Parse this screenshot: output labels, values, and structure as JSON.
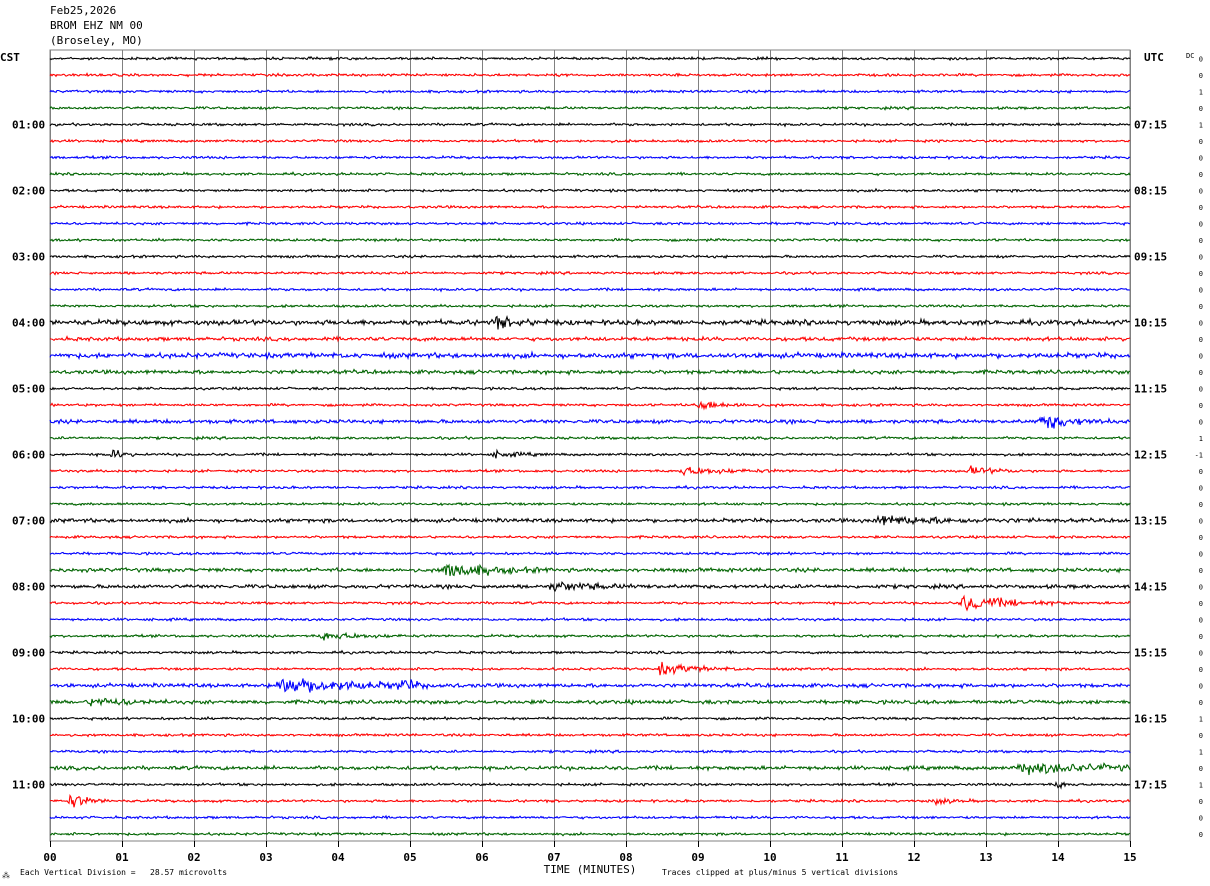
{
  "header": {
    "date": "Feb25,2026",
    "station": "BROM EHZ NM 00",
    "location": "(Broseley, MO)"
  },
  "labels": {
    "left_timezone": "CST",
    "right_timezone": "UTC",
    "dc_label": "DC",
    "xlabel": "TIME (MINUTES)",
    "footer_left": "Each Vertical Division =   28.57 microvolts",
    "footer_right": "Traces clipped at plus/minus 5 vertical divisions",
    "corner_mark": "⁂"
  },
  "colors": {
    "cycle": [
      "#000000",
      "#ff0000",
      "#0000ff",
      "#006400"
    ],
    "grid": "#808080"
  },
  "chart_data": {
    "type": "line",
    "title": "BROM EHZ NM 00 (Broseley, MO)",
    "xlabel": "TIME (MINUTES)",
    "xlim": [
      0,
      15
    ],
    "x_ticks": [
      "00",
      "01",
      "02",
      "03",
      "04",
      "05",
      "06",
      "07",
      "08",
      "09",
      "10",
      "11",
      "12",
      "13",
      "14",
      "15"
    ],
    "row_count": 48,
    "left_time_labels": [
      "01:00",
      "02:00",
      "03:00",
      "04:00",
      "05:00",
      "06:00",
      "07:00",
      "08:00",
      "09:00",
      "10:00",
      "11:00"
    ],
    "right_time_labels": [
      "07:15",
      "08:15",
      "09:15",
      "10:15",
      "11:15",
      "12:15",
      "13:15",
      "14:15",
      "15:15",
      "16:15",
      "17:15"
    ],
    "dc_offsets": [
      0,
      0,
      1,
      0,
      1,
      0,
      0,
      0,
      0,
      0,
      0,
      0,
      0,
      0,
      0,
      0,
      0,
      0,
      0,
      0,
      0,
      0,
      0,
      1,
      -1,
      0,
      0,
      0,
      0,
      0,
      0,
      0,
      0,
      0,
      0,
      0,
      0,
      0,
      0,
      0,
      1,
      0,
      1,
      0,
      1,
      0,
      0,
      0
    ],
    "noise_levels": [
      1,
      1,
      1,
      1,
      1,
      1,
      1,
      1,
      1,
      1,
      1,
      1,
      1,
      1,
      1,
      1,
      2,
      1.5,
      2,
      1.5,
      1,
      1,
      1.5,
      1,
      1,
      1,
      1,
      1,
      1.5,
      1,
      1,
      1.5,
      1.5,
      1,
      1,
      1,
      1,
      1,
      1.5,
      1.5,
      1,
      1,
      1,
      1.5,
      1,
      1,
      1,
      1
    ],
    "events": [
      {
        "row": 16,
        "minute": 6.2,
        "amplitude": 4,
        "duration": 0.8
      },
      {
        "row": 21,
        "minute": 9.0,
        "amplitude": 3,
        "duration": 1.2
      },
      {
        "row": 22,
        "minute": 13.8,
        "amplitude": 6,
        "duration": 1.0
      },
      {
        "row": 24,
        "minute": 0.9,
        "amplitude": 4,
        "duration": 0.3
      },
      {
        "row": 24,
        "minute": 6.2,
        "amplitude": 2,
        "duration": 0.8
      },
      {
        "row": 25,
        "minute": 8.8,
        "amplitude": 3,
        "duration": 1.5
      },
      {
        "row": 25,
        "minute": 12.8,
        "amplitude": 3,
        "duration": 0.8
      },
      {
        "row": 28,
        "minute": 11.5,
        "amplitude": 3,
        "duration": 2.5
      },
      {
        "row": 31,
        "minute": 5.5,
        "amplitude": 6,
        "duration": 1.5
      },
      {
        "row": 32,
        "minute": 7.0,
        "amplitude": 3,
        "duration": 1.5
      },
      {
        "row": 33,
        "minute": 12.7,
        "amplitude": 6,
        "duration": 1.5
      },
      {
        "row": 35,
        "minute": 3.8,
        "amplitude": 3,
        "duration": 1.2
      },
      {
        "row": 37,
        "minute": 8.5,
        "amplitude": 4,
        "duration": 1.2
      },
      {
        "row": 38,
        "minute": 3.2,
        "amplitude": 7,
        "duration": 2.5
      },
      {
        "row": 38,
        "minute": 4.9,
        "amplitude": 5,
        "duration": 0.3
      },
      {
        "row": 39,
        "minute": 0.6,
        "amplitude": 3,
        "duration": 1.2
      },
      {
        "row": 43,
        "minute": 13.5,
        "amplitude": 4,
        "duration": 3.0
      },
      {
        "row": 44,
        "minute": 14.0,
        "amplitude": 3,
        "duration": 0.3
      },
      {
        "row": 45,
        "minute": 0.3,
        "amplitude": 5,
        "duration": 0.6
      },
      {
        "row": 45,
        "minute": 12.3,
        "amplitude": 2,
        "duration": 0.6
      }
    ]
  }
}
